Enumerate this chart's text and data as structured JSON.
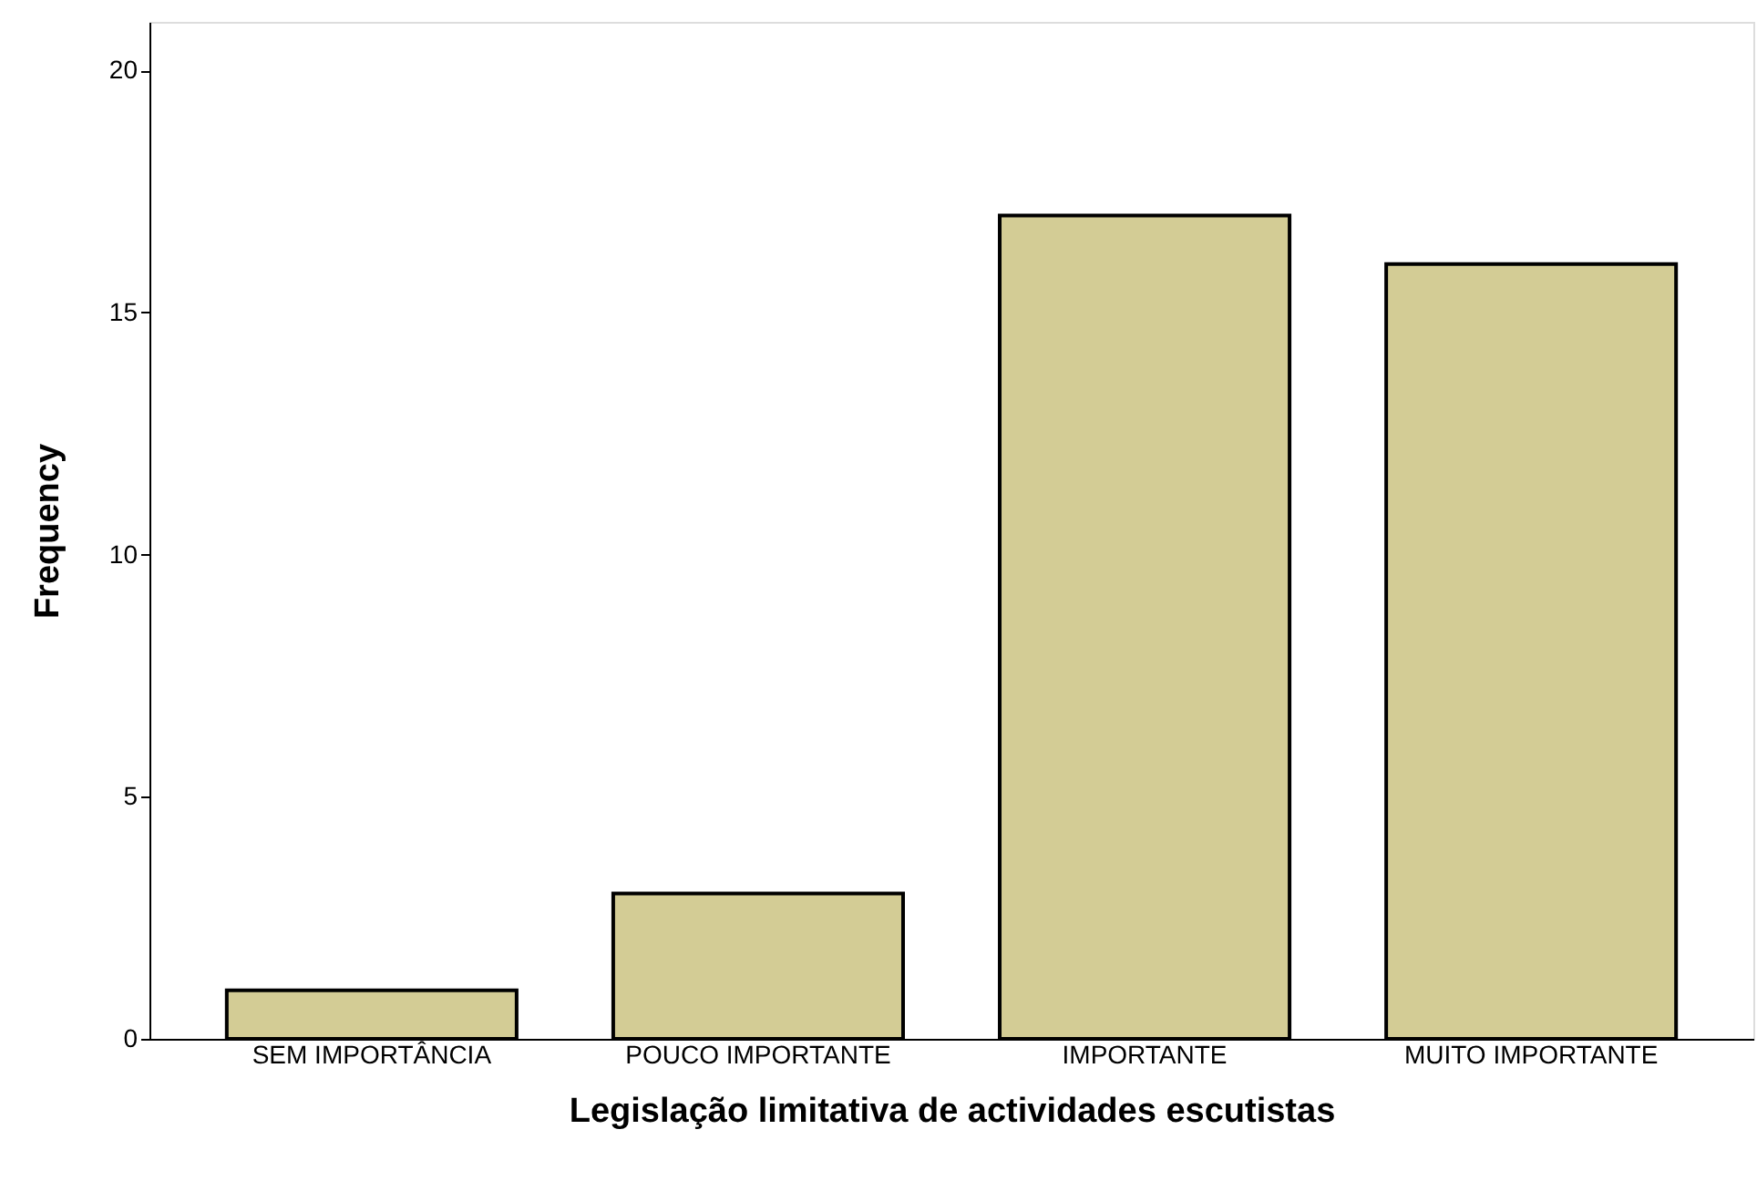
{
  "chart_data": {
    "type": "bar",
    "xlabel": "Legislação limitativa de actividades escutistas",
    "ylabel": "Frequency",
    "categories": [
      "SEM IMPORTÂNCIA",
      "POUCO IMPORTANTE",
      "IMPORTANTE",
      "MUITO IMPORTANTE"
    ],
    "values": [
      1,
      3,
      17,
      16
    ],
    "color": "#d3cc95",
    "ylim": [
      0,
      21
    ],
    "yticks": [
      0,
      5,
      10,
      15,
      20
    ],
    "grid": false
  }
}
